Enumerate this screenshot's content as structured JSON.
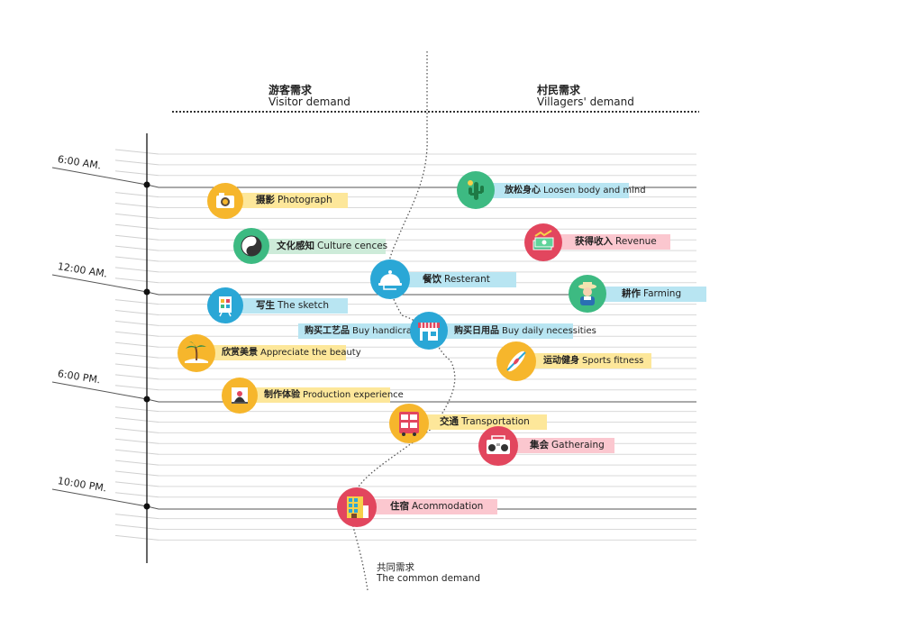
{
  "headers": {
    "visitor": {
      "zh": "游客需求",
      "en": "Visitor demand"
    },
    "villagers": {
      "zh": "村民需求",
      "en": "Villagers' demand"
    },
    "common": {
      "zh": "共同需求",
      "en": "The common demand"
    }
  },
  "times": [
    "6:00 AM.",
    "12:00 AM.",
    "6:00 PM.",
    "10:00 PM."
  ],
  "items": [
    {
      "id": "photograph",
      "zh": "摄影",
      "en": "Photograph",
      "icon": "camera-icon"
    },
    {
      "id": "culture",
      "zh": "文化感知",
      "en": "Culture cences",
      "icon": "yin-yang-icon"
    },
    {
      "id": "sketch",
      "zh": "写生",
      "en": "The sketch",
      "icon": "easel-icon"
    },
    {
      "id": "handicraft",
      "zh": "购买工艺品",
      "en": "Buy handicraft",
      "icon": "shop-icon"
    },
    {
      "id": "beauty",
      "zh": "欣赏美景",
      "en": "Appreciate the beauty",
      "icon": "palm-tree-icon"
    },
    {
      "id": "production",
      "zh": "制作体验",
      "en": "Production experience",
      "icon": "pottery-icon"
    },
    {
      "id": "loosen",
      "zh": "放松身心",
      "en": "Loosen body and mind",
      "icon": "cactus-icon"
    },
    {
      "id": "revenue",
      "zh": "获得收入",
      "en": "Revenue",
      "icon": "money-icon"
    },
    {
      "id": "restaurant",
      "zh": "餐饮",
      "en": "Resterant",
      "icon": "cloche-icon"
    },
    {
      "id": "farming",
      "zh": "耕作",
      "en": "Farming",
      "icon": "farmer-icon"
    },
    {
      "id": "necessities",
      "zh": "购买日用品",
      "en": "Buy daily necessities",
      "icon": "shop-icon"
    },
    {
      "id": "sports",
      "zh": "运动健身",
      "en": "Sports fitness",
      "icon": "kayak-icon"
    },
    {
      "id": "transportation",
      "zh": "交通",
      "en": "Transportation",
      "icon": "bus-icon"
    },
    {
      "id": "gathering",
      "zh": "集会",
      "en": "Gatheraing",
      "icon": "boombox-icon"
    },
    {
      "id": "accommodation",
      "zh": "住宿",
      "en": "Acommodation",
      "icon": "building-icon"
    }
  ],
  "colors": {
    "yellow": "#f6b62c",
    "green": "#3dba82",
    "blue": "#2aa7d6",
    "pink": "#e2465e"
  }
}
